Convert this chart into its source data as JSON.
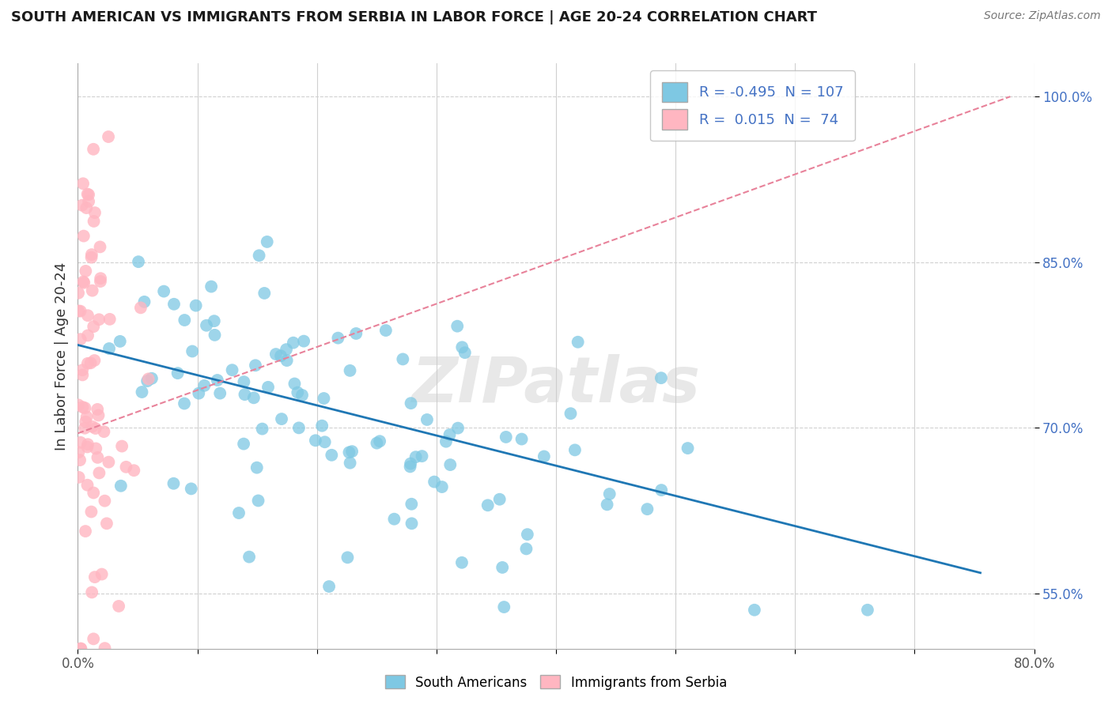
{
  "title": "SOUTH AMERICAN VS IMMIGRANTS FROM SERBIA IN LABOR FORCE | AGE 20-24 CORRELATION CHART",
  "source": "Source: ZipAtlas.com",
  "ylabel": "In Labor Force | Age 20-24",
  "xlim": [
    0.0,
    0.8
  ],
  "ylim": [
    0.5,
    1.03
  ],
  "xticks": [
    0.0,
    0.1,
    0.2,
    0.3,
    0.4,
    0.5,
    0.6,
    0.7,
    0.8
  ],
  "xticklabels": [
    "0.0%",
    "",
    "",
    "",
    "",
    "",
    "",
    "",
    "80.0%"
  ],
  "yticks": [
    0.55,
    0.7,
    0.85,
    1.0
  ],
  "yticklabels": [
    "55.0%",
    "70.0%",
    "85.0%",
    "100.0%"
  ],
  "blue_color": "#7ec8e3",
  "blue_line_color": "#1f77b4",
  "pink_color": "#ffb6c1",
  "pink_line_color": "#e8829a",
  "blue_R": -0.495,
  "blue_N": 107,
  "pink_R": 0.015,
  "pink_N": 74,
  "watermark": "ZIPatlas",
  "background_color": "#ffffff",
  "grid_color": "#d0d0d0",
  "blue_seed": 42,
  "pink_seed": 99
}
